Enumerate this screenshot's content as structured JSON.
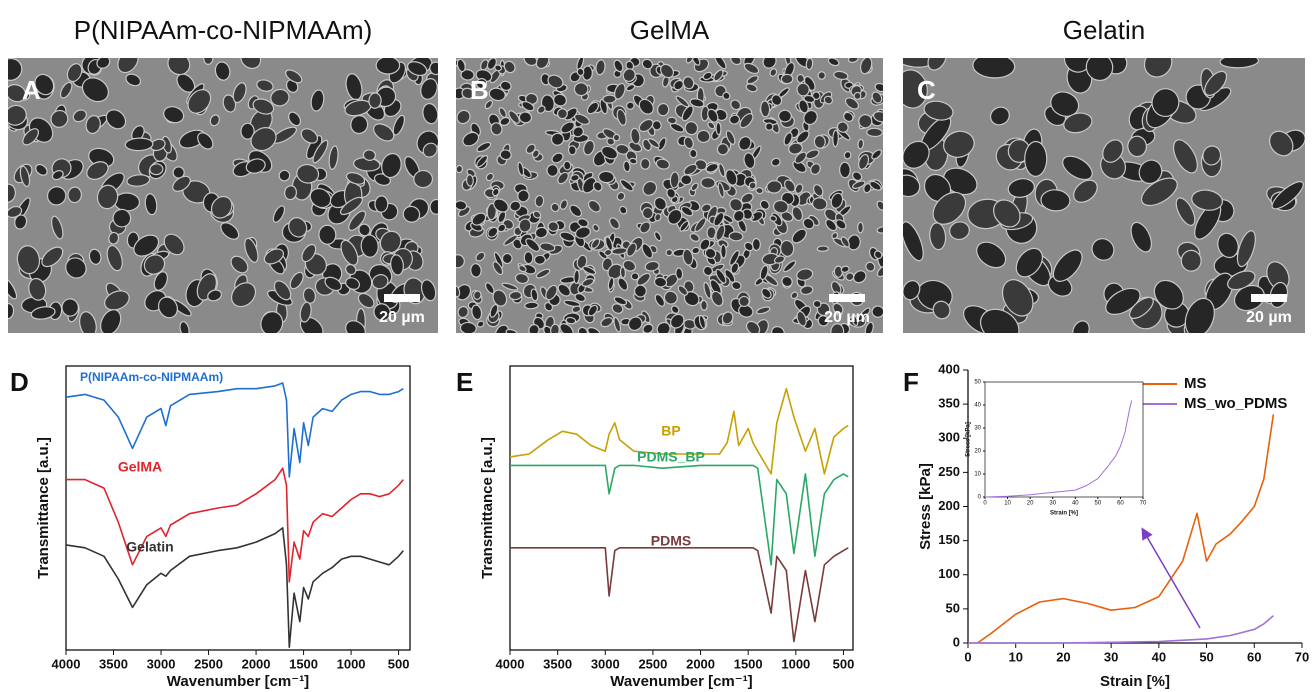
{
  "panels": [
    {
      "label": "A",
      "title": "P(NIPAAm-co-NIPMAAm)",
      "scale_bar": "20 µm"
    },
    {
      "label": "B",
      "title": "GelMA",
      "scale_bar": "20 µm"
    },
    {
      "label": "C",
      "title": "Gelatin",
      "scale_bar": "20 µm"
    }
  ],
  "chart_data": [
    {
      "type": "line",
      "panel": "D",
      "xlabel": "Wavenumber [cm⁻¹]",
      "ylabel": "Transmittance [a.u.]",
      "xlim": [
        4000,
        380
      ],
      "xticks": [
        4000,
        3500,
        3000,
        2500,
        2000,
        1500,
        1000,
        500
      ],
      "ylim": [
        0,
        100
      ],
      "x": [
        4000,
        3800,
        3600,
        3450,
        3300,
        3150,
        3000,
        2950,
        2900,
        2700,
        2400,
        2200,
        2000,
        1800,
        1720,
        1680,
        1650,
        1600,
        1540,
        1500,
        1450,
        1400,
        1300,
        1200,
        1100,
        1000,
        900,
        800,
        700,
        600,
        500,
        450
      ],
      "series": [
        {
          "name": "P(NIPAAm-co-NIPMAAm)",
          "color": "#1f6fd0",
          "values": [
            89,
            90,
            88,
            82,
            71,
            82,
            85,
            79,
            86,
            90,
            91,
            92,
            92,
            93,
            94,
            88,
            61,
            78,
            66,
            80,
            72,
            82,
            85,
            84,
            88,
            90,
            91,
            91,
            90,
            90,
            91,
            92
          ]
        },
        {
          "name": "GelMA",
          "color": "#e0242c",
          "values": [
            60,
            60,
            57,
            45,
            30,
            40,
            43,
            40,
            44,
            48,
            50,
            51,
            55,
            60,
            64,
            58,
            24,
            38,
            32,
            42,
            40,
            45,
            48,
            47,
            50,
            53,
            55,
            55,
            54,
            55,
            58,
            60
          ]
        },
        {
          "name": "Gelatin",
          "color": "#333333",
          "values": [
            37,
            36,
            33,
            25,
            15,
            23,
            27,
            26,
            28,
            33,
            35,
            36,
            38,
            41,
            43,
            30,
            1,
            20,
            10,
            22,
            18,
            24,
            27,
            29,
            32,
            33,
            33,
            32,
            31,
            30,
            33,
            35
          ]
        }
      ]
    },
    {
      "type": "line",
      "panel": "E",
      "xlabel": "Wavenumber [cm⁻¹]",
      "ylabel": "Transmittance [a.u.]",
      "xlim": [
        4000,
        400
      ],
      "xticks": [
        4000,
        3500,
        3000,
        2500,
        2000,
        1500,
        1000,
        500
      ],
      "ylim": [
        0,
        100
      ],
      "x": [
        4000,
        3800,
        3600,
        3450,
        3300,
        3150,
        3000,
        2960,
        2900,
        2850,
        2700,
        2400,
        2000,
        1800,
        1720,
        1650,
        1600,
        1500,
        1450,
        1400,
        1260,
        1200,
        1100,
        1020,
        900,
        800,
        700,
        600,
        500,
        450
      ],
      "series": [
        {
          "name": "BP",
          "color": "#c8a000",
          "values": [
            68,
            69,
            74,
            77,
            76,
            72,
            70,
            76,
            80,
            74,
            70,
            69,
            69,
            69,
            73,
            84,
            72,
            78,
            73,
            70,
            62,
            80,
            92,
            82,
            70,
            78,
            62,
            75,
            78,
            79
          ]
        },
        {
          "name": "PDMS_BP",
          "color": "#2aa866",
          "values": [
            65,
            65,
            65,
            65,
            65,
            65,
            65,
            55,
            64,
            65,
            65,
            64,
            65,
            65,
            65,
            65,
            65,
            65,
            65,
            64,
            30,
            60,
            55,
            34,
            62,
            33,
            55,
            60,
            62,
            61
          ]
        },
        {
          "name": "PDMS",
          "color": "#7a3b3b",
          "values": [
            36,
            36,
            36,
            36,
            36,
            36,
            36,
            19,
            35,
            36,
            36,
            36,
            36,
            36,
            36,
            36,
            36,
            36,
            36,
            35,
            13,
            33,
            28,
            3,
            28,
            10,
            30,
            33,
            35,
            36
          ]
        }
      ]
    },
    {
      "type": "line",
      "panel": "F",
      "xlabel": "Strain [%]",
      "ylabel": "Stress [kPa]",
      "legend": "upper right",
      "xlim": [
        0,
        70
      ],
      "xticks": [
        0,
        10,
        20,
        30,
        40,
        50,
        60,
        70
      ],
      "ylim": [
        0,
        400
      ],
      "yticks": [
        0,
        50,
        100,
        150,
        200,
        250,
        300,
        350,
        400
      ],
      "series": [
        {
          "name": "MS",
          "color": "#e8600a",
          "x": [
            2,
            5,
            10,
            15,
            20,
            25,
            30,
            35,
            40,
            45,
            48,
            50,
            52,
            55,
            57,
            60,
            62,
            64
          ],
          "values": [
            0,
            15,
            42,
            60,
            65,
            58,
            48,
            52,
            68,
            120,
            190,
            120,
            145,
            160,
            175,
            200,
            240,
            335
          ]
        },
        {
          "name": "MS_wo_PDMS",
          "color": "#a070d8",
          "x": [
            0,
            20,
            30,
            40,
            50,
            55,
            60,
            62,
            64
          ],
          "values": [
            0,
            0,
            1,
            2,
            6,
            11,
            20,
            28,
            40
          ]
        }
      ]
    },
    {
      "type": "line",
      "xlabel": "Strain [%]",
      "ylabel": "Stress [kPa]",
      "xlim": [
        0,
        70
      ],
      "xticks": [
        0,
        10,
        20,
        30,
        40,
        50,
        60,
        70
      ],
      "ylim": [
        0,
        50
      ],
      "yticks": [
        0,
        10,
        20,
        30,
        40,
        50
      ],
      "series": [
        {
          "color": "#a070d8",
          "x": [
            0,
            10,
            20,
            30,
            40,
            45,
            50,
            55,
            58,
            60,
            62,
            64,
            65
          ],
          "values": [
            0,
            0.3,
            1,
            2,
            3,
            5,
            8,
            14,
            18,
            22,
            28,
            38,
            42
          ]
        }
      ]
    }
  ]
}
